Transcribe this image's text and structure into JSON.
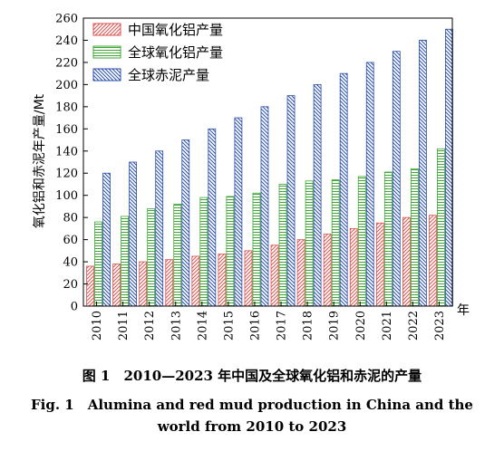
{
  "figure": {
    "caption_cn": "图 1　2010—2023 年中国及全球氧化铝和赤泥的产量",
    "caption_en_line1": "Fig. 1　Alumina and red mud production in China and the",
    "caption_en_line2": "world from 2010 to 2023"
  },
  "chart_data": {
    "type": "bar",
    "categories": [
      "2010",
      "2011",
      "2012",
      "2013",
      "2014",
      "2015",
      "2016",
      "2017",
      "2018",
      "2019",
      "2020",
      "2021",
      "2022",
      "2023"
    ],
    "series": [
      {
        "name": "中国氧化铝产量",
        "color": "#d9534f",
        "pattern": "diagonal-hatch",
        "values": [
          36,
          38,
          40,
          42,
          45,
          47,
          50,
          55,
          60,
          65,
          70,
          75,
          80,
          82
        ]
      },
      {
        "name": "全球氧化铝产量",
        "color": "#3fa535",
        "pattern": "horizontal-hatch",
        "values": [
          76,
          81,
          88,
          92,
          98,
          99,
          102,
          110,
          113,
          114,
          117,
          121,
          124,
          142
        ]
      },
      {
        "name": "全球赤泥产量",
        "color": "#2b4fa8",
        "pattern": "diagonal-hatch",
        "values": [
          120,
          130,
          140,
          150,
          160,
          170,
          180,
          190,
          200,
          210,
          220,
          230,
          240,
          250
        ]
      }
    ],
    "ylabel": "氧化铝和赤泥年产量/Mt",
    "xlabel": "年",
    "ylim": [
      0,
      260
    ],
    "yticks": [
      0,
      20,
      40,
      60,
      80,
      100,
      120,
      140,
      160,
      180,
      200,
      220,
      240,
      260
    ],
    "grid": false,
    "legend_position": "top-left"
  }
}
